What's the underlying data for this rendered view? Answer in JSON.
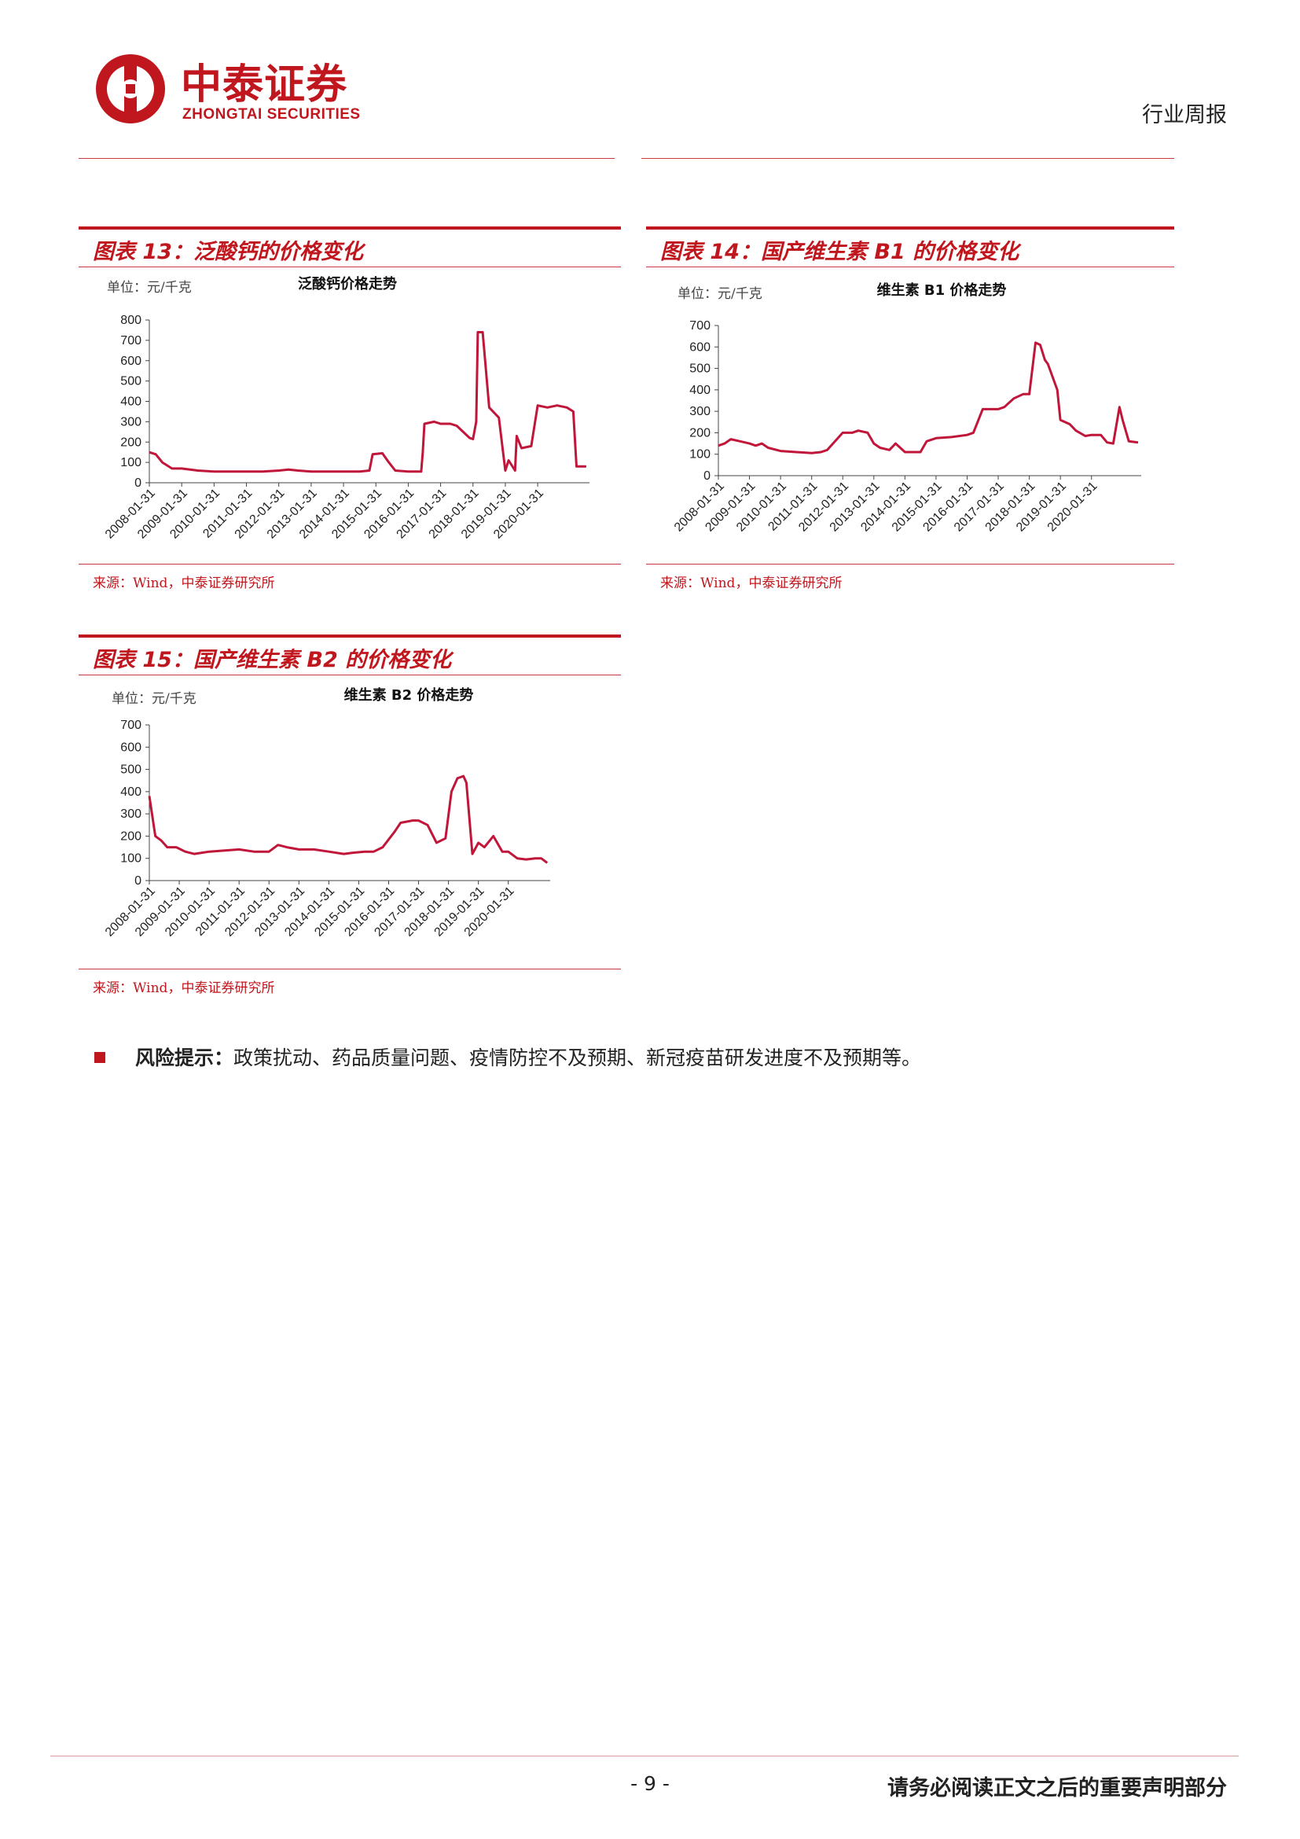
{
  "header": {
    "logo_cn": "中泰证券",
    "logo_en": "ZHONGTAI SECURITIES",
    "report_type": "行业周报"
  },
  "colors": {
    "brand_red": "#c0161d",
    "series": "#c0163a"
  },
  "panels": [
    {
      "title": "图表 13：泛酸钙的价格变化",
      "source": "来源：Wind，中泰证券研究所",
      "unit": "单位：元/千克",
      "chart_title": "泛酸钙价格走势"
    },
    {
      "title": "图表 14：国产维生素 B1 的价格变化",
      "source": "来源：Wind，中泰证券研究所",
      "unit": "单位：元/千克",
      "chart_title": "维生素 B1 价格走势"
    },
    {
      "title": "图表 15：国产维生素 B2 的价格变化",
      "source": "来源：Wind，中泰证券研究所",
      "unit": "单位：元/千克",
      "chart_title": "维生素 B2 价格走势"
    }
  ],
  "risk": {
    "label": "风险提示：",
    "text": "政策扰动、药品质量问题、疫情防控不及预期、新冠疫苗研发进度不及预期等。"
  },
  "footer": {
    "page": "- 9 -",
    "note": "请务必阅读正文之后的重要声明部分"
  },
  "chart_data": [
    {
      "type": "line",
      "title": "泛酸钙价格走势",
      "unit": "单位：元/千克",
      "x_ticks": [
        "2008-01-31",
        "2009-01-31",
        "2010-01-31",
        "2011-01-31",
        "2012-01-31",
        "2013-01-31",
        "2014-01-31",
        "2015-01-31",
        "2016-01-31",
        "2017-01-31",
        "2018-01-31",
        "2019-01-31",
        "2020-01-31"
      ],
      "y_ticks": [
        0,
        100,
        200,
        300,
        400,
        500,
        600,
        700,
        800
      ],
      "ylim": [
        0,
        800
      ],
      "xlim": [
        2008.0,
        2021.6
      ],
      "series": [
        {
          "x": [
            2008.0,
            2008.2,
            2008.4,
            2008.7,
            2009.0,
            2009.5,
            2010.0,
            2011.0,
            2011.5,
            2012.0,
            2012.3,
            2012.6,
            2013.0,
            2014.0,
            2014.5,
            2014.8,
            2014.9,
            2015.2,
            2015.4,
            2015.6,
            2016.0,
            2016.4,
            2016.45,
            2016.5,
            2016.8,
            2017.0,
            2017.3,
            2017.5,
            2017.9,
            2018.0,
            2018.1,
            2018.15,
            2018.3,
            2018.5,
            2018.8,
            2019.0,
            2019.1,
            2019.3,
            2019.35,
            2019.5,
            2019.8,
            2020.0,
            2020.3,
            2020.6,
            2020.9,
            2021.1,
            2021.2,
            2021.5
          ],
          "y": [
            150,
            140,
            100,
            70,
            70,
            60,
            55,
            55,
            55,
            60,
            65,
            60,
            55,
            55,
            55,
            60,
            140,
            145,
            100,
            60,
            55,
            55,
            150,
            290,
            300,
            290,
            290,
            280,
            220,
            215,
            300,
            740,
            740,
            370,
            320,
            60,
            110,
            60,
            230,
            170,
            180,
            380,
            370,
            380,
            370,
            350,
            80,
            80
          ]
        }
      ]
    },
    {
      "type": "line",
      "title": "维生素 B1 价格走势",
      "unit": "单位：元/千克",
      "x_ticks": [
        "2008-01-31",
        "2009-01-31",
        "2010-01-31",
        "2011-01-31",
        "2012-01-31",
        "2013-01-31",
        "2014-01-31",
        "2015-01-31",
        "2016-01-31",
        "2017-01-31",
        "2018-01-31",
        "2019-01-31",
        "2020-01-31"
      ],
      "y_ticks": [
        0,
        100,
        200,
        300,
        400,
        500,
        600,
        700
      ],
      "ylim": [
        0,
        700
      ],
      "xlim": [
        2008.0,
        2021.6
      ],
      "series": [
        {
          "x": [
            2008.0,
            2008.2,
            2008.4,
            2008.7,
            2009.0,
            2009.2,
            2009.4,
            2009.6,
            2010.0,
            2011.0,
            2011.3,
            2011.5,
            2012.0,
            2012.3,
            2012.5,
            2012.8,
            2013.0,
            2013.2,
            2013.5,
            2013.7,
            2014.0,
            2014.5,
            2014.7,
            2015.0,
            2015.5,
            2016.0,
            2016.2,
            2016.5,
            2016.8,
            2017.0,
            2017.2,
            2017.5,
            2017.8,
            2018.0,
            2018.2,
            2018.35,
            2018.5,
            2018.6,
            2018.9,
            2019.0,
            2019.3,
            2019.5,
            2019.8,
            2020.0,
            2020.3,
            2020.5,
            2020.7,
            2020.9,
            2021.0,
            2021.2,
            2021.5
          ],
          "y": [
            140,
            150,
            170,
            160,
            150,
            140,
            150,
            130,
            115,
            105,
            110,
            120,
            200,
            200,
            210,
            200,
            150,
            130,
            120,
            150,
            110,
            110,
            160,
            175,
            180,
            190,
            200,
            310,
            310,
            310,
            320,
            360,
            380,
            380,
            620,
            610,
            540,
            520,
            400,
            260,
            240,
            210,
            185,
            190,
            190,
            155,
            150,
            320,
            260,
            160,
            155
          ]
        }
      ]
    },
    {
      "type": "line",
      "title": "维生素 B2 价格走势",
      "unit": "单位：元/千克",
      "x_ticks": [
        "2008-01-31",
        "2009-01-31",
        "2010-01-31",
        "2011-01-31",
        "2012-01-31",
        "2013-01-31",
        "2014-01-31",
        "2015-01-31",
        "2016-01-31",
        "2017-01-31",
        "2018-01-31",
        "2019-01-31",
        "2020-01-31"
      ],
      "y_ticks": [
        0,
        100,
        200,
        300,
        400,
        500,
        600,
        700
      ],
      "ylim": [
        0,
        700
      ],
      "xlim": [
        2008.0,
        2021.4
      ],
      "series": [
        {
          "x": [
            2008.0,
            2008.2,
            2008.4,
            2008.6,
            2008.9,
            2009.2,
            2009.5,
            2010.0,
            2011.0,
            2011.5,
            2012.0,
            2012.3,
            2012.6,
            2013.0,
            2013.5,
            2014.0,
            2014.5,
            2014.8,
            2015.2,
            2015.5,
            2015.8,
            2016.2,
            2016.4,
            2016.8,
            2017.0,
            2017.3,
            2017.6,
            2017.9,
            2018.1,
            2018.3,
            2018.5,
            2018.6,
            2018.8,
            2019.0,
            2019.2,
            2019.5,
            2019.8,
            2020.0,
            2020.3,
            2020.6,
            2020.9,
            2021.1,
            2021.3
          ],
          "y": [
            380,
            200,
            180,
            150,
            150,
            130,
            120,
            130,
            140,
            130,
            130,
            160,
            150,
            140,
            140,
            130,
            120,
            125,
            130,
            130,
            150,
            220,
            260,
            270,
            270,
            250,
            170,
            190,
            400,
            460,
            470,
            440,
            120,
            170,
            150,
            200,
            130,
            130,
            100,
            95,
            100,
            100,
            80
          ]
        }
      ]
    }
  ]
}
